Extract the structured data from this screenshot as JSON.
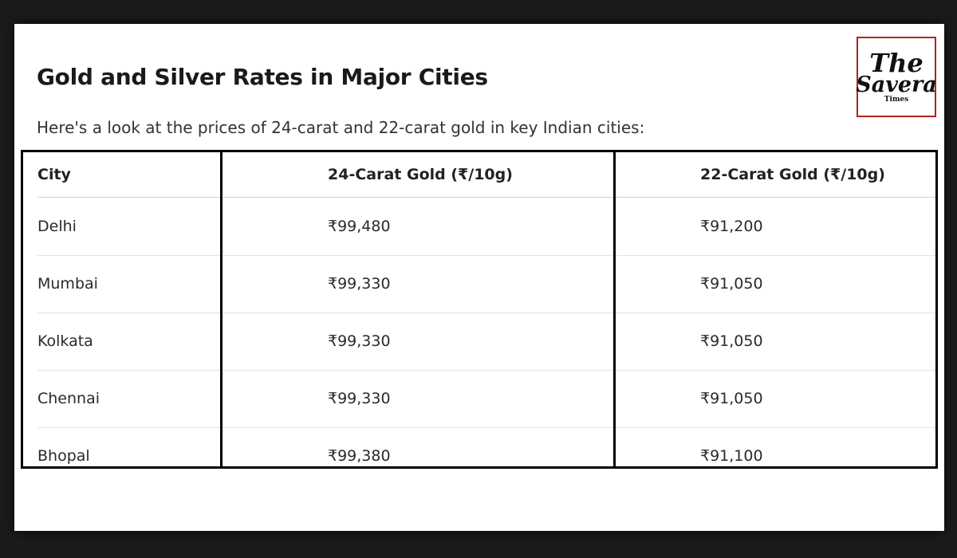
{
  "article": {
    "title": "Gold and Silver Rates in Major Cities",
    "intro": "Here's a look at the prices of 24-carat and 22-carat gold in key Indian cities:"
  },
  "logo": {
    "line1": "The",
    "line2": "Savera",
    "line3": "Times",
    "border_color": "#b22222"
  },
  "table": {
    "headers": [
      "City",
      "24-Carat Gold (₹/10g)",
      "22-Carat Gold (₹/10g)"
    ],
    "rows": [
      [
        "Delhi",
        "₹99,480",
        "₹91,200"
      ],
      [
        "Mumbai",
        "₹99,330",
        "₹91,050"
      ],
      [
        "Kolkata",
        "₹99,330",
        "₹91,050"
      ],
      [
        "Chennai",
        "₹99,330",
        "₹91,050"
      ],
      [
        "Bhopal",
        "₹99,380",
        "₹91,100"
      ]
    ]
  }
}
